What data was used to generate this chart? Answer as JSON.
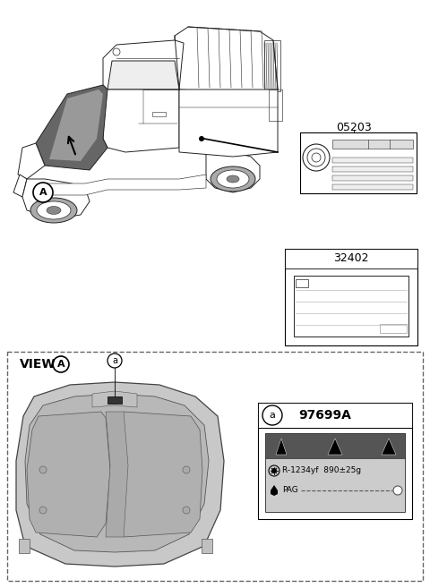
{
  "bg_color": "#ffffff",
  "part_05203_label": "05203",
  "part_32402_label": "32402",
  "part_97699A_label": "97699A",
  "view_a_label": "VIEW",
  "refrigerant_text": "R-1234yf  890±25g",
  "pag_text": "PAG",
  "label_a": "a",
  "label_A": "A",
  "car_edge": "#222222",
  "car_lw": 0.7,
  "hood_fill": "#888888",
  "hood_fill2": "#aaaaaa",
  "body_fill": "#ffffff",
  "panel_fill": "#c0c0c0",
  "panel_fill2": "#b0b0b0"
}
